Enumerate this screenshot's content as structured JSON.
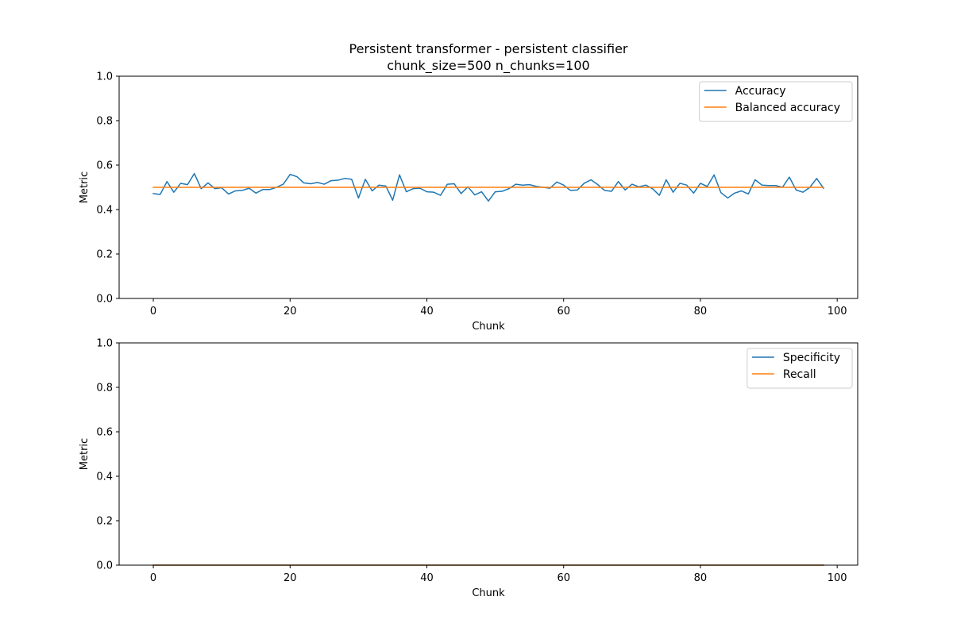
{
  "figure": {
    "title_line1": "Persistent transformer - persistent classifier",
    "title_line2": "chunk_size=500 n_chunks=100"
  },
  "chart_data": [
    {
      "type": "line",
      "xlabel": "Chunk",
      "ylabel": "Metric",
      "xlim": [
        -5,
        103
      ],
      "ylim": [
        0,
        1
      ],
      "xticks": [
        0,
        20,
        40,
        60,
        80,
        100
      ],
      "yticks": [
        0.0,
        0.2,
        0.4,
        0.6,
        0.8,
        1.0
      ],
      "xtick_labels": [
        "0",
        "20",
        "40",
        "60",
        "80",
        "100"
      ],
      "ytick_labels": [
        "0.0",
        "0.2",
        "0.4",
        "0.6",
        "0.8",
        "1.0"
      ],
      "legend_position": "top-right",
      "grid": false,
      "series": [
        {
          "name": "Accuracy",
          "color": "#1f77b4",
          "values": [
            0.472,
            0.468,
            0.526,
            0.478,
            0.518,
            0.512,
            0.562,
            0.494,
            0.52,
            0.494,
            0.498,
            0.47,
            0.484,
            0.486,
            0.496,
            0.474,
            0.49,
            0.49,
            0.5,
            0.514,
            0.558,
            0.548,
            0.52,
            0.516,
            0.522,
            0.514,
            0.53,
            0.532,
            0.54,
            0.536,
            0.452,
            0.536,
            0.484,
            0.51,
            0.506,
            0.442,
            0.556,
            0.48,
            0.494,
            0.496,
            0.48,
            0.478,
            0.464,
            0.514,
            0.516,
            0.472,
            0.502,
            0.466,
            0.48,
            0.438,
            0.48,
            0.482,
            0.494,
            0.514,
            0.51,
            0.512,
            0.504,
            0.5,
            0.496,
            0.524,
            0.51,
            0.486,
            0.488,
            0.518,
            0.534,
            0.512,
            0.486,
            0.482,
            0.526,
            0.488,
            0.514,
            0.502,
            0.51,
            0.494,
            0.464,
            0.534,
            0.478,
            0.518,
            0.51,
            0.474,
            0.518,
            0.504,
            0.556,
            0.476,
            0.452,
            0.474,
            0.484,
            0.47,
            0.534,
            0.51,
            0.508,
            0.508,
            0.5,
            0.546,
            0.488,
            0.478,
            0.5,
            0.54,
            0.496
          ]
        },
        {
          "name": "Balanced accuracy",
          "color": "#ff7f0e",
          "constant": 0.5,
          "n": 99
        }
      ]
    },
    {
      "type": "line",
      "xlabel": "Chunk",
      "ylabel": "Metric",
      "xlim": [
        -5,
        103
      ],
      "ylim": [
        0,
        1
      ],
      "xticks": [
        0,
        20,
        40,
        60,
        80,
        100
      ],
      "yticks": [
        0.0,
        0.2,
        0.4,
        0.6,
        0.8,
        1.0
      ],
      "xtick_labels": [
        "0",
        "20",
        "40",
        "60",
        "80",
        "100"
      ],
      "ytick_labels": [
        "0.0",
        "0.2",
        "0.4",
        "0.6",
        "0.8",
        "1.0"
      ],
      "legend_position": "top-right",
      "grid": false,
      "series": [
        {
          "name": "Specificity",
          "color": "#1f77b4",
          "constant": 0.0,
          "n": 99
        },
        {
          "name": "Recall",
          "color": "#ff7f0e",
          "constant": 0.0,
          "n": 99
        }
      ]
    }
  ]
}
